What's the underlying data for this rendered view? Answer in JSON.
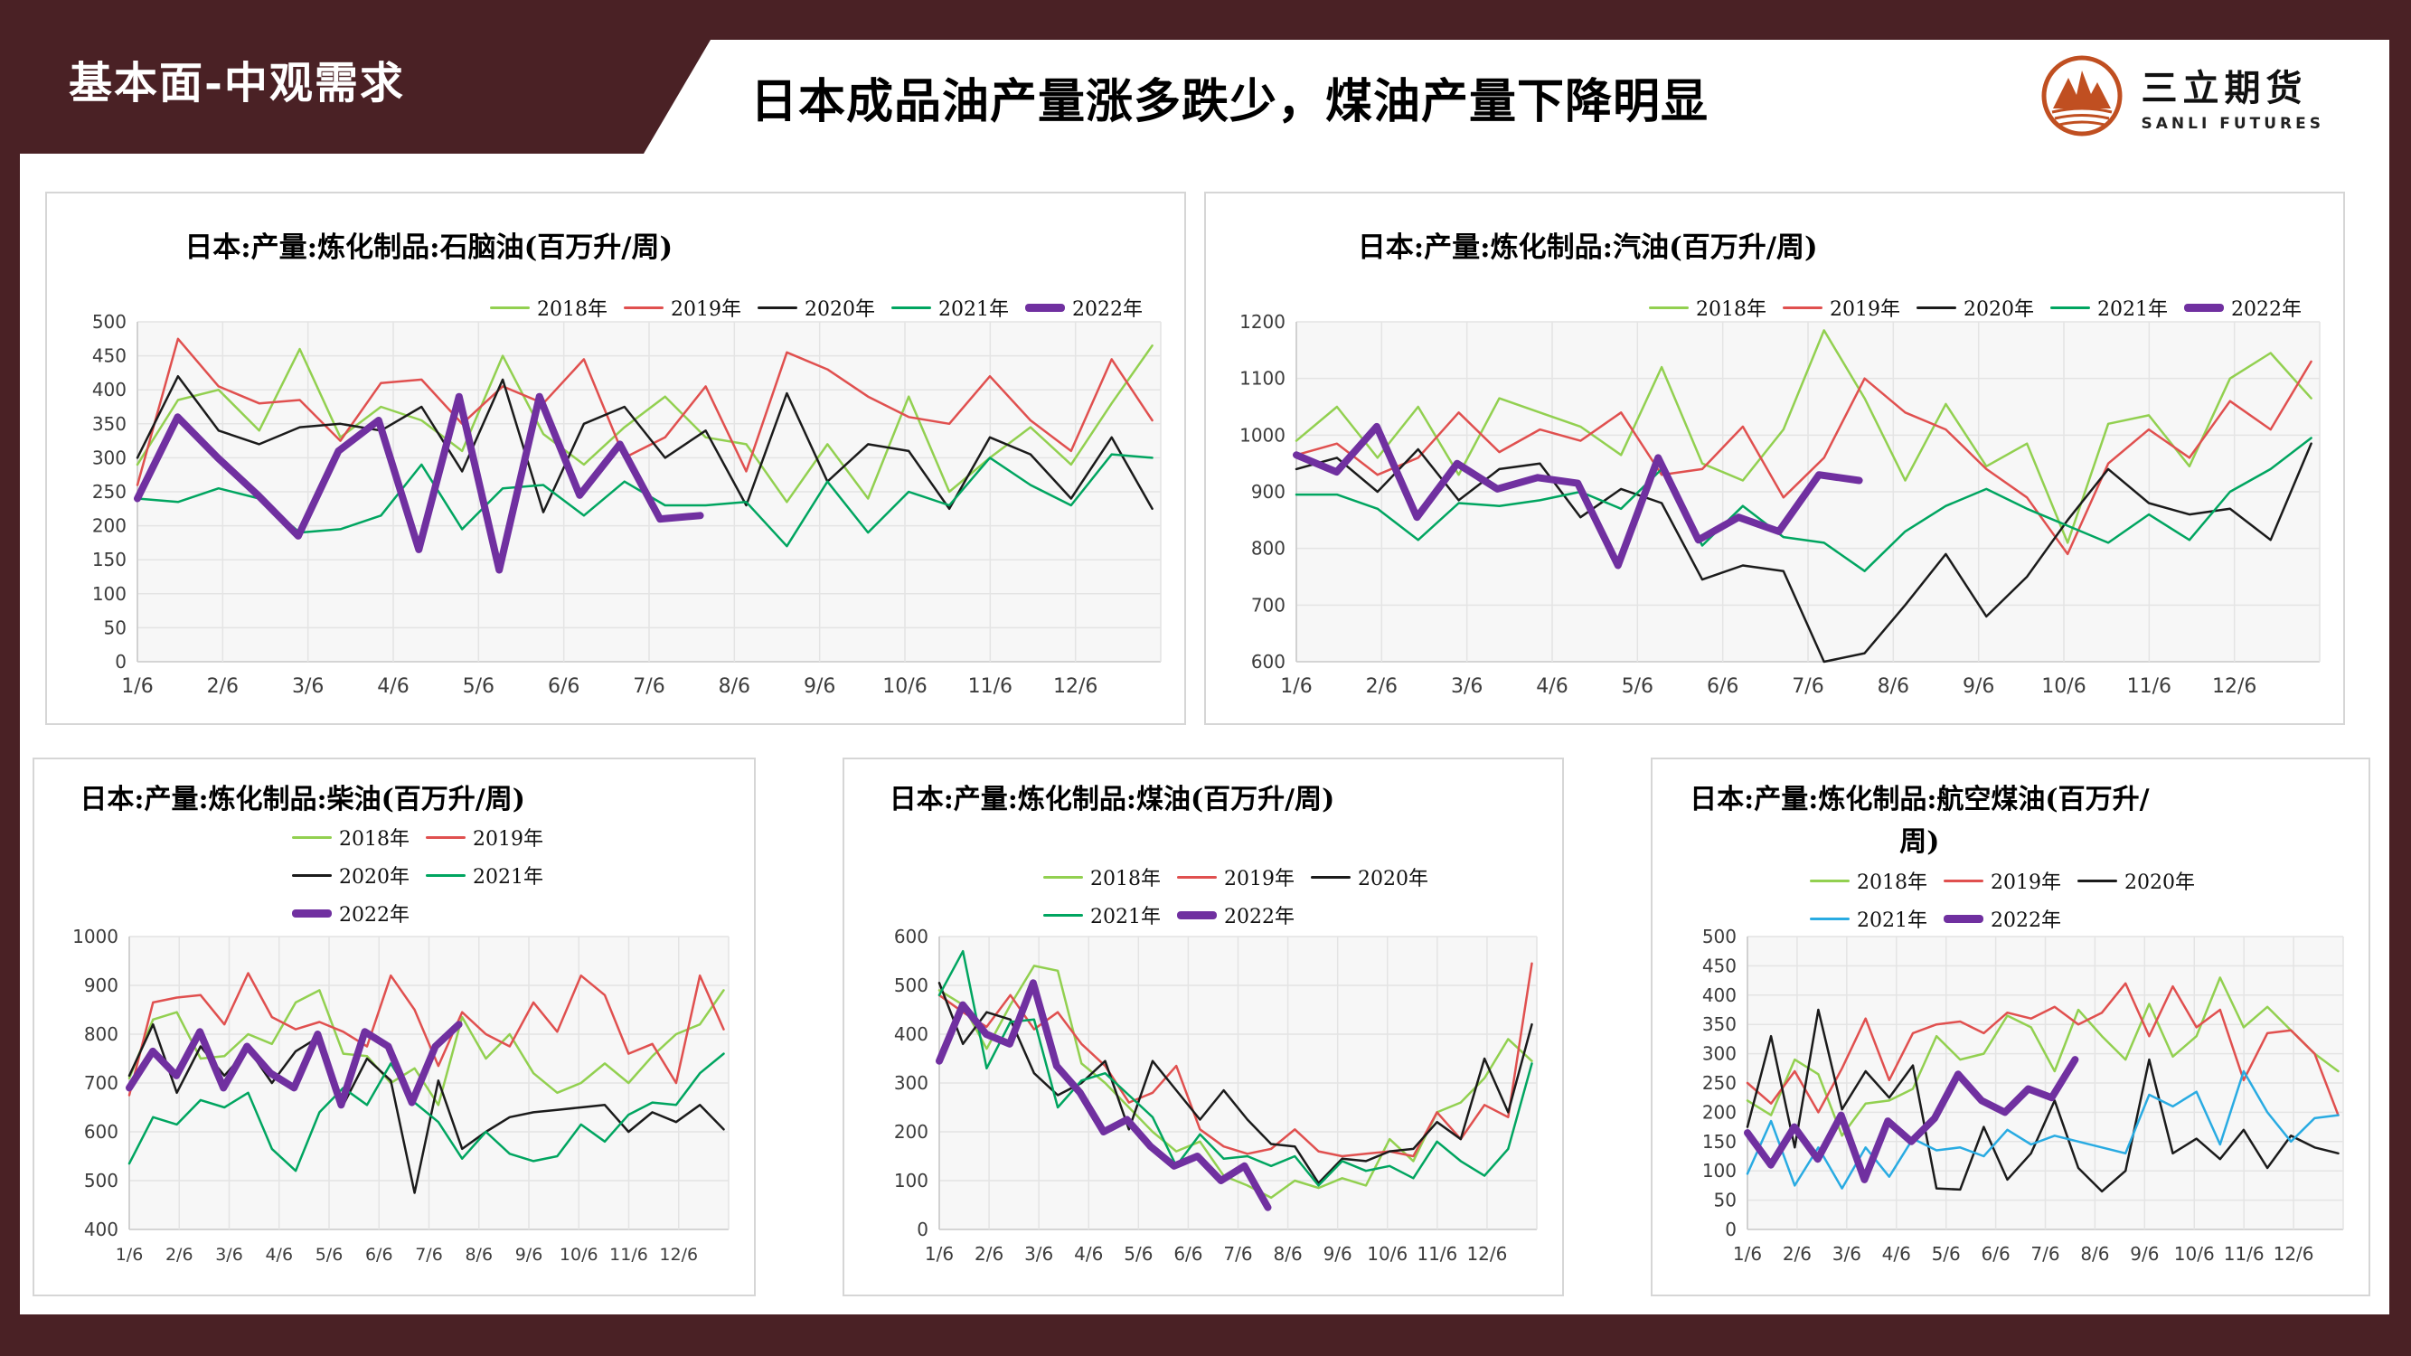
{
  "header": {
    "section_label": "基本面-中观需求",
    "main_title": "日本成品油产量涨多跌少，煤油产量下降明显"
  },
  "logo": {
    "cn": "三立期货",
    "en": "SANLI FUTURES"
  },
  "colors": {
    "frame_maroon": "#4A2125",
    "logo_orange": "#C04F21",
    "plot_background": "#f7f7f7",
    "gridline": "#e4e4e4",
    "axis_line": "#c8c8c8"
  },
  "chart_data": [
    {
      "type": "line",
      "title": "日本:产量:炼化制品:石脑油(百万升/周)",
      "categories": [
        "1/6",
        "2/6",
        "3/6",
        "4/6",
        "5/6",
        "6/6",
        "7/6",
        "8/6",
        "9/6",
        "10/6",
        "11/6",
        "12/6"
      ],
      "ylim": [
        0,
        500
      ],
      "ytick": 50,
      "grid": true,
      "legend_position": "top-right",
      "series": [
        {
          "name": "2018年",
          "color": "#92D050",
          "thick": false,
          "end_month": 12.9,
          "values": [
            290,
            385,
            400,
            340,
            460,
            330,
            375,
            355,
            310,
            450,
            335,
            290,
            345,
            390,
            330,
            320,
            235,
            320,
            240,
            390,
            250,
            300,
            345,
            290,
            380,
            465
          ]
        },
        {
          "name": "2019年",
          "color": "#E0504F",
          "thick": false,
          "end_month": 12.9,
          "values": [
            260,
            475,
            405,
            380,
            385,
            325,
            410,
            415,
            350,
            405,
            380,
            445,
            300,
            330,
            405,
            280,
            455,
            430,
            390,
            360,
            350,
            420,
            355,
            310,
            445,
            355
          ]
        },
        {
          "name": "2020年",
          "color": "#1B1B1B",
          "thick": false,
          "end_month": 12.9,
          "values": [
            300,
            420,
            340,
            320,
            345,
            350,
            340,
            375,
            280,
            415,
            220,
            350,
            375,
            300,
            340,
            230,
            395,
            265,
            320,
            310,
            225,
            330,
            305,
            240,
            330,
            225
          ]
        },
        {
          "name": "2021年",
          "color": "#00A560",
          "thick": false,
          "end_month": 12.9,
          "values": [
            240,
            235,
            255,
            240,
            190,
            195,
            215,
            290,
            195,
            255,
            260,
            215,
            265,
            230,
            230,
            235,
            170,
            265,
            190,
            250,
            230,
            300,
            260,
            230,
            305,
            300
          ]
        },
        {
          "name": "2022年",
          "color": "#7030A0",
          "thick": true,
          "end_month": 7.6,
          "values": [
            240,
            360,
            300,
            245,
            185,
            310,
            355,
            165,
            390,
            135,
            390,
            245,
            320,
            210,
            215
          ]
        }
      ]
    },
    {
      "type": "line",
      "title": "日本:产量:炼化制品:汽油(百万升/周)",
      "categories": [
        "1/6",
        "2/6",
        "3/6",
        "4/6",
        "5/6",
        "6/6",
        "7/6",
        "8/6",
        "9/6",
        "10/6",
        "11/6",
        "12/6"
      ],
      "ylim": [
        600,
        1200
      ],
      "ytick": 100,
      "grid": true,
      "legend_position": "top-right",
      "series": [
        {
          "name": "2018年",
          "color": "#92D050",
          "thick": false,
          "end_month": 12.9,
          "values": [
            990,
            1050,
            960,
            1050,
            930,
            1065,
            1040,
            1015,
            965,
            1120,
            950,
            920,
            1010,
            1185,
            1065,
            920,
            1055,
            945,
            985,
            810,
            1020,
            1035,
            945,
            1100,
            1145,
            1065
          ]
        },
        {
          "name": "2019年",
          "color": "#E0504F",
          "thick": false,
          "end_month": 12.9,
          "values": [
            965,
            985,
            930,
            960,
            1040,
            970,
            1010,
            990,
            1040,
            930,
            940,
            1015,
            890,
            960,
            1100,
            1040,
            1010,
            940,
            890,
            790,
            950,
            1010,
            960,
            1060,
            1010,
            1130
          ]
        },
        {
          "name": "2020年",
          "color": "#1B1B1B",
          "thick": false,
          "end_month": 12.9,
          "values": [
            940,
            960,
            900,
            975,
            885,
            940,
            950,
            855,
            905,
            880,
            745,
            770,
            760,
            600,
            615,
            700,
            790,
            680,
            750,
            850,
            940,
            880,
            860,
            870,
            815,
            985
          ]
        },
        {
          "name": "2021年",
          "color": "#00A560",
          "thick": false,
          "end_month": 12.9,
          "values": [
            895,
            895,
            870,
            815,
            880,
            875,
            885,
            900,
            870,
            940,
            805,
            875,
            820,
            810,
            760,
            830,
            875,
            905,
            870,
            840,
            810,
            860,
            815,
            900,
            940,
            995
          ]
        },
        {
          "name": "2022年",
          "color": "#7030A0",
          "thick": true,
          "end_month": 7.6,
          "values": [
            965,
            935,
            1015,
            855,
            950,
            905,
            925,
            915,
            770,
            960,
            815,
            855,
            830,
            930,
            920
          ]
        }
      ]
    },
    {
      "type": "line",
      "title": "日本:产量:炼化制品:柴油(百万升/周)",
      "categories": [
        "1/6",
        "2/6",
        "3/6",
        "4/6",
        "5/6",
        "6/6",
        "7/6",
        "8/6",
        "9/6",
        "10/6",
        "11/6",
        "12/6"
      ],
      "ylim": [
        400,
        1000
      ],
      "ytick": 100,
      "grid": true,
      "legend_position": "right-of-title",
      "series": [
        {
          "name": "2018年",
          "color": "#92D050",
          "thick": false,
          "end_month": 12.9,
          "values": [
            710,
            830,
            845,
            750,
            755,
            800,
            780,
            865,
            890,
            760,
            755,
            700,
            730,
            655,
            835,
            750,
            800,
            720,
            680,
            700,
            740,
            700,
            755,
            800,
            820,
            890
          ]
        },
        {
          "name": "2019年",
          "color": "#E0504F",
          "thick": false,
          "end_month": 12.9,
          "values": [
            675,
            865,
            875,
            880,
            820,
            925,
            835,
            810,
            825,
            805,
            775,
            920,
            850,
            735,
            845,
            800,
            775,
            865,
            805,
            920,
            880,
            760,
            780,
            700,
            920,
            810
          ]
        },
        {
          "name": "2020年",
          "color": "#1B1B1B",
          "thick": false,
          "end_month": 12.9,
          "values": [
            715,
            820,
            680,
            775,
            715,
            770,
            700,
            765,
            795,
            655,
            750,
            705,
            475,
            705,
            565,
            600,
            630,
            640,
            645,
            650,
            655,
            600,
            640,
            620,
            655,
            605
          ]
        },
        {
          "name": "2021年",
          "color": "#00A560",
          "thick": false,
          "end_month": 12.9,
          "values": [
            535,
            630,
            615,
            665,
            650,
            680,
            565,
            520,
            640,
            690,
            655,
            740,
            660,
            620,
            545,
            600,
            555,
            540,
            550,
            615,
            580,
            635,
            660,
            655,
            720,
            760
          ]
        },
        {
          "name": "2022年",
          "color": "#7030A0",
          "thick": true,
          "end_month": 7.6,
          "values": [
            690,
            765,
            715,
            805,
            690,
            775,
            720,
            690,
            800,
            655,
            805,
            775,
            660,
            775,
            820
          ]
        }
      ]
    },
    {
      "type": "line",
      "title": "日本:产量:炼化制品:煤油(百万升/周)",
      "categories": [
        "1/6",
        "2/6",
        "3/6",
        "4/6",
        "5/6",
        "6/6",
        "7/6",
        "8/6",
        "9/6",
        "10/6",
        "11/6",
        "12/6"
      ],
      "ylim": [
        0,
        600
      ],
      "ytick": 100,
      "grid": true,
      "legend_position": "below-title",
      "series": [
        {
          "name": "2018年",
          "color": "#92D050",
          "thick": false,
          "end_month": 12.9,
          "values": [
            490,
            460,
            370,
            460,
            540,
            530,
            340,
            300,
            250,
            200,
            160,
            180,
            110,
            90,
            65,
            100,
            85,
            105,
            90,
            185,
            140,
            240,
            260,
            310,
            390,
            345
          ]
        },
        {
          "name": "2019年",
          "color": "#E0504F",
          "thick": false,
          "end_month": 12.9,
          "values": [
            480,
            445,
            415,
            480,
            410,
            445,
            380,
            335,
            260,
            280,
            335,
            205,
            170,
            155,
            165,
            205,
            160,
            150,
            155,
            160,
            150,
            240,
            185,
            255,
            230,
            545
          ]
        },
        {
          "name": "2020年",
          "color": "#1B1B1B",
          "thick": false,
          "end_month": 12.9,
          "values": [
            505,
            380,
            445,
            430,
            320,
            275,
            300,
            345,
            205,
            345,
            285,
            225,
            285,
            225,
            175,
            170,
            95,
            145,
            140,
            160,
            165,
            220,
            185,
            350,
            240,
            420
          ]
        },
        {
          "name": "2021年",
          "color": "#00A560",
          "thick": false,
          "end_month": 12.9,
          "values": [
            480,
            570,
            330,
            425,
            430,
            250,
            305,
            320,
            275,
            230,
            130,
            195,
            145,
            150,
            130,
            150,
            90,
            140,
            120,
            130,
            105,
            180,
            140,
            110,
            165,
            340
          ]
        },
        {
          "name": "2022年",
          "color": "#7030A0",
          "thick": true,
          "end_month": 7.6,
          "values": [
            345,
            460,
            400,
            380,
            505,
            335,
            280,
            200,
            225,
            170,
            130,
            150,
            100,
            130,
            45
          ]
        }
      ]
    },
    {
      "type": "line",
      "title": "日本:产量:炼化制品:航空煤油(百万升/周)",
      "categories": [
        "1/6",
        "2/6",
        "3/6",
        "4/6",
        "5/6",
        "6/6",
        "7/6",
        "8/6",
        "9/6",
        "10/6",
        "11/6",
        "12/6"
      ],
      "ylim": [
        0,
        500
      ],
      "ytick": 50,
      "grid": true,
      "legend_position": "below-title",
      "series": [
        {
          "name": "2018年",
          "color": "#92D050",
          "thick": false,
          "end_month": 12.9,
          "values": [
            220,
            195,
            290,
            265,
            160,
            215,
            220,
            240,
            330,
            290,
            300,
            365,
            345,
            270,
            375,
            330,
            290,
            385,
            295,
            330,
            430,
            345,
            380,
            340,
            300,
            270
          ]
        },
        {
          "name": "2019年",
          "color": "#E0504F",
          "thick": false,
          "end_month": 12.9,
          "values": [
            250,
            215,
            270,
            200,
            275,
            360,
            255,
            335,
            350,
            355,
            335,
            370,
            360,
            380,
            350,
            370,
            420,
            330,
            415,
            345,
            375,
            255,
            335,
            340,
            300,
            195
          ]
        },
        {
          "name": "2020年",
          "color": "#1B1B1B",
          "thick": false,
          "end_month": 12.9,
          "values": [
            175,
            330,
            140,
            375,
            205,
            270,
            225,
            280,
            70,
            68,
            175,
            85,
            130,
            220,
            105,
            65,
            100,
            290,
            130,
            155,
            120,
            170,
            105,
            160,
            140,
            130
          ]
        },
        {
          "name": "2021年",
          "color": "#29ABE2",
          "thick": false,
          "end_month": 12.9,
          "values": [
            95,
            185,
            75,
            140,
            70,
            140,
            90,
            155,
            135,
            140,
            125,
            170,
            145,
            160,
            150,
            140,
            130,
            230,
            210,
            235,
            145,
            270,
            200,
            150,
            190,
            195
          ]
        },
        {
          "name": "2022年",
          "color": "#7030A0",
          "thick": true,
          "end_month": 7.6,
          "values": [
            165,
            110,
            175,
            120,
            195,
            85,
            185,
            150,
            190,
            265,
            220,
            200,
            240,
            225,
            290
          ]
        }
      ]
    }
  ]
}
